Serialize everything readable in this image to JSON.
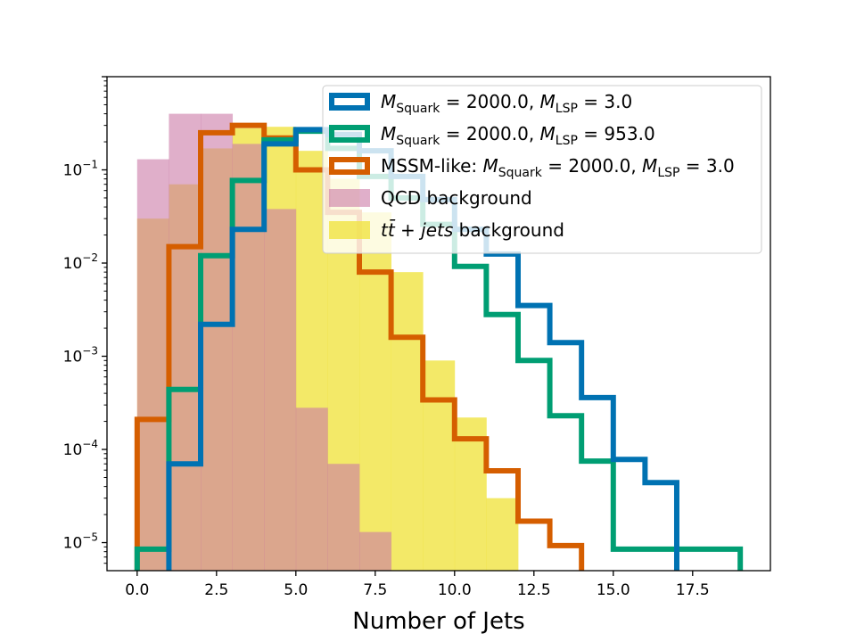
{
  "chart_data": {
    "type": "histogram",
    "xlabel": "Number of Jets",
    "ylabel": "",
    "yscale": "log",
    "xlim": [
      -0.95,
      19.95
    ],
    "ylim": [
      5e-06,
      1.0
    ],
    "x_ticks": [
      0.0,
      2.5,
      5.0,
      7.5,
      10.0,
      12.5,
      15.0,
      17.5
    ],
    "x_tick_labels": [
      "0.0",
      "2.5",
      "5.0",
      "7.5",
      "10.0",
      "12.5",
      "15.0",
      "17.5"
    ],
    "y_ticks": [
      1e-05,
      0.0001,
      0.001,
      0.01,
      0.1
    ],
    "y_tick_labels": [
      {
        "base": "10",
        "exp": "−5"
      },
      {
        "base": "10",
        "exp": "−4"
      },
      {
        "base": "10",
        "exp": "−3"
      },
      {
        "base": "10",
        "exp": "−2"
      },
      {
        "base": "10",
        "exp": "−1"
      }
    ],
    "legend_position": "upper-right",
    "series": [
      {
        "key": "ttbar",
        "kind": "filled",
        "color": "#f0e442",
        "alpha": 0.8,
        "legend": [
          "",
          "tt̄",
          " + ",
          "jets",
          " background"
        ],
        "edges": [
          0,
          1,
          2,
          3,
          4,
          5,
          6,
          7,
          8,
          9,
          10,
          11,
          12
        ],
        "values": [
          0.03,
          0.07,
          0.17,
          0.28,
          0.29,
          0.16,
          0.08,
          0.035,
          0.008,
          0.0009,
          0.00022,
          3e-05
        ]
      },
      {
        "key": "qcd",
        "kind": "filled",
        "color": "#cc79a7",
        "alpha": 0.6,
        "legend": [
          "QCD background"
        ],
        "edges": [
          0,
          1,
          2,
          3,
          4,
          5,
          6,
          7,
          8
        ],
        "values": [
          0.13,
          0.4,
          0.4,
          0.19,
          0.038,
          0.00028,
          7e-05,
          1.3e-05
        ]
      },
      {
        "key": "mssm",
        "kind": "step",
        "color": "#d55e00",
        "legend": [
          "MSSM-like: ",
          "M",
          "Squark",
          " = 2000.0, ",
          "M",
          "LSP",
          " = 3.0"
        ],
        "edges": [
          0,
          1,
          2,
          3,
          4,
          5,
          6,
          7,
          8,
          9,
          10,
          11,
          12,
          13,
          14
        ],
        "values": [
          0.00021,
          0.015,
          0.25,
          0.3,
          0.22,
          0.1,
          0.035,
          0.008,
          0.0016,
          0.00034,
          0.00013,
          5.9e-05,
          1.7e-05,
          9.3e-06
        ]
      },
      {
        "key": "green",
        "kind": "step",
        "color": "#009e73",
        "legend": [
          "M",
          "Squark",
          " = 2000.0, ",
          "M",
          "LSP",
          " = 953.0"
        ],
        "edges": [
          0,
          1,
          2,
          3,
          4,
          5,
          6,
          7,
          8,
          9,
          10,
          11,
          12,
          13,
          14,
          15,
          16,
          17,
          18,
          19
        ],
        "values": [
          8.5e-06,
          0.00044,
          0.012,
          0.077,
          0.21,
          0.26,
          0.17,
          0.085,
          0.05,
          0.026,
          0.0092,
          0.0028,
          0.0009,
          0.00023,
          7.5e-05,
          8.5e-06,
          8.5e-06,
          8.5e-06,
          8.5e-06
        ]
      },
      {
        "key": "blue",
        "kind": "step",
        "color": "#0072b2",
        "legend": [
          "M",
          "Squark",
          " = 2000.0, ",
          "M",
          "LSP",
          " = 3.0"
        ],
        "edges": [
          1,
          2,
          3,
          4,
          5,
          6,
          7,
          8,
          9,
          10,
          11,
          12,
          13,
          14,
          15,
          16,
          17
        ],
        "values": [
          7e-05,
          0.0022,
          0.023,
          0.19,
          0.27,
          0.24,
          0.16,
          0.085,
          0.048,
          0.023,
          0.0125,
          0.0035,
          0.0014,
          0.00036,
          7.8e-05,
          4.4e-05
        ]
      }
    ],
    "legend_order": [
      "blue",
      "green",
      "mssm",
      "qcd",
      "ttbar"
    ]
  }
}
